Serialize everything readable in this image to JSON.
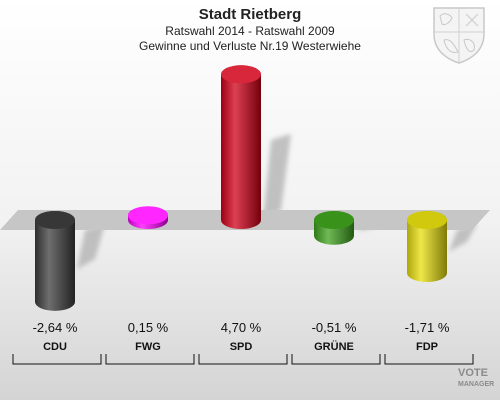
{
  "header": {
    "title": "Stadt Rietberg",
    "subtitle1": "Ratswahl 2014 - Ratswahl 2009",
    "subtitle2": "Gewinne und Verluste Nr.19 Westerwiehe"
  },
  "watermark": {
    "line1": "VOTE",
    "line2": "MANAGER"
  },
  "chart_data": {
    "type": "bar",
    "title": "Stadt Rietberg",
    "subtitle": "Ratswahl 2014 - Ratswahl 2009 / Gewinne und Verluste Nr.19 Westerwiehe",
    "categories": [
      "CDU",
      "FWG",
      "SPD",
      "GRÜNE",
      "FDP"
    ],
    "values": [
      -2.64,
      0.15,
      4.7,
      -0.51,
      -1.71
    ],
    "value_labels": [
      "-2,64 %",
      "0,15 %",
      "4,70 %",
      "-0,51 %",
      "-1,71 %"
    ],
    "colors": [
      "#3d3d3d",
      "#ff00ff",
      "#d10018",
      "#3fa31e",
      "#e8df0e"
    ],
    "unit": "%",
    "grid": false,
    "legend": "none"
  }
}
